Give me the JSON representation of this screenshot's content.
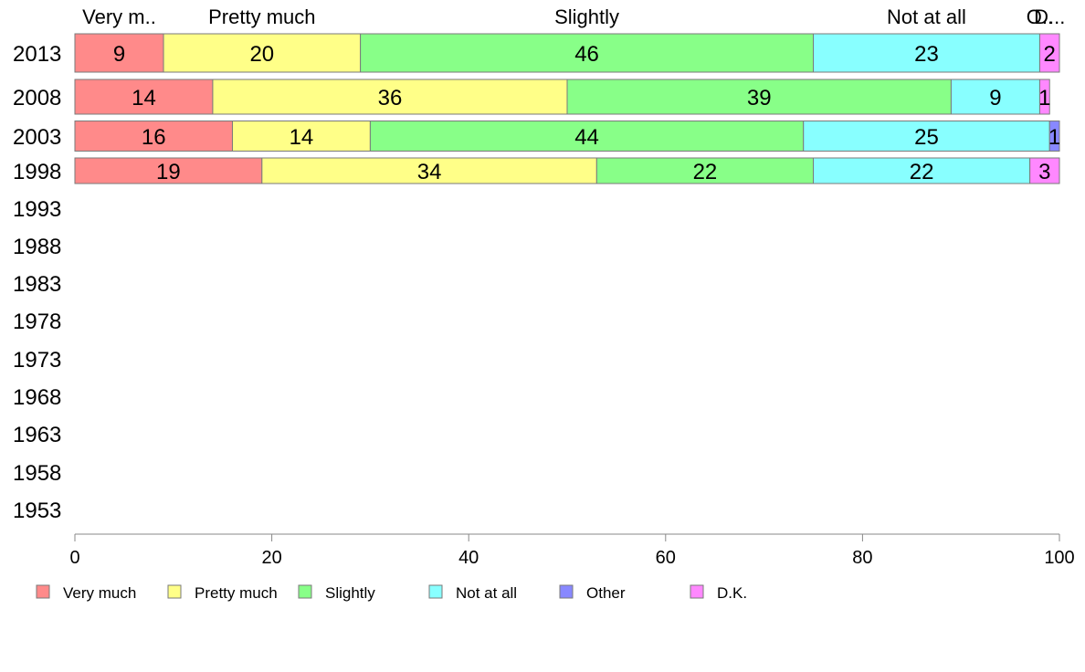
{
  "chart_data": {
    "type": "bar",
    "orientation": "horizontal",
    "stacked": true,
    "categories": [
      "2013",
      "2008",
      "2003",
      "1998",
      "1993",
      "1988",
      "1983",
      "1978",
      "1973",
      "1968",
      "1963",
      "1958",
      "1953"
    ],
    "series": [
      {
        "name": "Very much",
        "header": "Very m..",
        "color": "#ff8a8a",
        "values": [
          9,
          14,
          16,
          19,
          null,
          null,
          null,
          null,
          null,
          null,
          null,
          null,
          null
        ]
      },
      {
        "name": "Pretty much",
        "header": "Pretty much",
        "color": "#ffff88",
        "values": [
          20,
          36,
          14,
          34,
          null,
          null,
          null,
          null,
          null,
          null,
          null,
          null,
          null
        ]
      },
      {
        "name": "Slightly",
        "header": "Slightly",
        "color": "#88ff88",
        "values": [
          46,
          39,
          44,
          22,
          null,
          null,
          null,
          null,
          null,
          null,
          null,
          null,
          null
        ]
      },
      {
        "name": "Not at all",
        "header": "Not at all",
        "color": "#88ffff",
        "values": [
          23,
          9,
          25,
          22,
          null,
          null,
          null,
          null,
          null,
          null,
          null,
          null,
          null
        ]
      },
      {
        "name": "Other",
        "header": "O..",
        "color": "#8888ff",
        "values": [
          0,
          0,
          1,
          0,
          null,
          null,
          null,
          null,
          null,
          null,
          null,
          null,
          null
        ]
      },
      {
        "name": "D.K.",
        "header": "D...",
        "color": "#ff88ff",
        "values": [
          2,
          1,
          0,
          3,
          null,
          null,
          null,
          null,
          null,
          null,
          null,
          null,
          null
        ]
      }
    ],
    "xlim": [
      0,
      100
    ],
    "xticks": [
      0,
      20,
      40,
      60,
      80,
      100
    ],
    "legend_position": "bottom",
    "grid": false
  }
}
